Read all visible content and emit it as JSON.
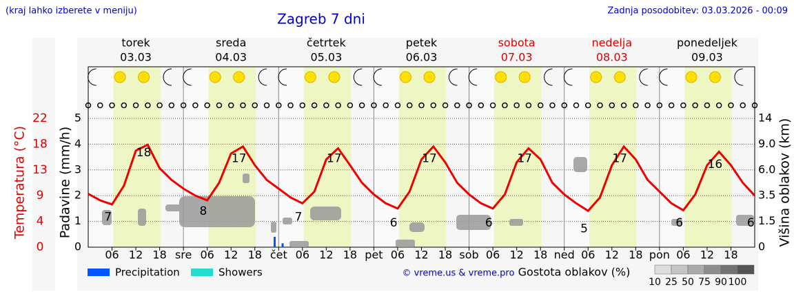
{
  "header": {
    "note": "(kraj lahko izberete v meniju)",
    "title": "Zagreb 7 dni",
    "updated": "Zadnja posodobitev: 03.03.2026 - 00:09",
    "credit": "© vreme.us & vreme.pro"
  },
  "days": [
    {
      "name": "torek",
      "date": "03.03"
    },
    {
      "name": "sreda",
      "date": "04.03"
    },
    {
      "name": "četrtek",
      "date": "05.03"
    },
    {
      "name": "petek",
      "date": "06.03"
    },
    {
      "name": "sobota",
      "date": "07.03"
    },
    {
      "name": "nedelja",
      "date": "08.03"
    },
    {
      "name": "ponedeljek",
      "date": "09.03"
    }
  ],
  "weekend_color": "#e00000",
  "cloud_legend": {
    "title": "Gostota oblakov (%)",
    "labels": [
      "10",
      "25",
      "50",
      "75",
      "90",
      "100"
    ],
    "colors": [
      "#dddddd",
      "#c4c4c4",
      "#aaaaaa",
      "#8e8e8e",
      "#727272",
      "#555555"
    ]
  },
  "chart_data": {
    "type": "line",
    "xlim": [
      0,
      168
    ],
    "xticks": [
      {
        "value": 6,
        "label": "06"
      },
      12,
      18,
      {
        "value": 24,
        "label": "sre"
      },
      {
        "value": 30,
        "label": "06"
      },
      {
        "value": 36,
        "label": "12"
      },
      {
        "value": 42,
        "label": "18"
      },
      {
        "value": 48,
        "label": "čet"
      },
      {
        "value": 54,
        "label": "06"
      },
      {
        "value": 60,
        "label": "12"
      },
      {
        "value": 66,
        "label": "18"
      },
      {
        "value": 72,
        "label": "pet"
      },
      {
        "value": 78,
        "label": "06"
      },
      {
        "value": 84,
        "label": "12"
      },
      {
        "value": 90,
        "label": "18"
      },
      {
        "value": 96,
        "label": "sob"
      },
      {
        "value": 102,
        "label": "06"
      },
      {
        "value": 108,
        "label": "12"
      },
      {
        "value": 114,
        "label": "18"
      },
      {
        "value": 120,
        "label": "ned"
      },
      {
        "value": 126,
        "label": "06"
      },
      {
        "value": 132,
        "label": "12"
      },
      {
        "value": 138,
        "label": "18"
      },
      {
        "value": 144,
        "label": "pon"
      },
      {
        "value": 150,
        "label": "06"
      },
      {
        "value": 156,
        "label": "12"
      },
      {
        "value": 162,
        "label": "18"
      }
    ],
    "ylabel": "Padavine (mm/h)",
    "ylim": [
      0,
      5
    ],
    "yticks": [
      0,
      1,
      2,
      3,
      4,
      5
    ],
    "y2label": "Temperatura (°C)",
    "y2lim": [
      0,
      22
    ],
    "y2ticks": [
      0,
      {
        "value": 4.4,
        "label": "4"
      },
      {
        "value": 8.8,
        "label": "9"
      },
      {
        "value": 13.2,
        "label": "13"
      },
      {
        "value": 17.6,
        "label": "18"
      },
      22
    ],
    "y3label": "Višina oblakov (km)",
    "y3labels": [
      "0",
      "1.5",
      "3.5",
      "6.0",
      "9.0",
      "14"
    ],
    "grid": true,
    "series": [
      {
        "name": "Precipitation",
        "color": "#0055ff",
        "kind": "bar",
        "x": [
          47,
          49
        ],
        "values": [
          0.4,
          0.15
        ]
      },
      {
        "name": "Showers",
        "color": "#22ddcc",
        "kind": "bar",
        "x": [],
        "values": []
      },
      {
        "name": "Temperatura",
        "color": "#ee0000",
        "kind": "line",
        "axis": "y2",
        "x": [
          0,
          3,
          6,
          9,
          12,
          15,
          18,
          21,
          24,
          27,
          30,
          33,
          36,
          39,
          42,
          45,
          48,
          51,
          54,
          57,
          60,
          63,
          66,
          69,
          72,
          75,
          78,
          81,
          84,
          87,
          90,
          93,
          96,
          99,
          102,
          105,
          108,
          111,
          114,
          117,
          120,
          123,
          126,
          129,
          132,
          135,
          138,
          141,
          144,
          147,
          150,
          153,
          156,
          159,
          162,
          165,
          168
        ],
        "values": [
          9.1,
          8.0,
          7.3,
          10.5,
          16.5,
          17.5,
          13.5,
          11.5,
          10.0,
          8.8,
          8.0,
          11.0,
          16.0,
          17.2,
          14.0,
          11.5,
          10.0,
          8.5,
          7.5,
          9.5,
          15.0,
          16.9,
          14.0,
          11.0,
          9.0,
          7.5,
          6.6,
          9.5,
          15.0,
          17.2,
          14.5,
          11.0,
          9.0,
          7.5,
          6.6,
          9.0,
          14.5,
          16.9,
          15.0,
          11.0,
          9.0,
          7.5,
          6.2,
          8.5,
          14.0,
          17.2,
          15.0,
          11.5,
          9.5,
          7.5,
          6.3,
          9.0,
          14.0,
          16.3,
          14.0,
          11.0,
          8.8
        ]
      }
    ],
    "temp_extremes": {
      "x": [
        5,
        14,
        29,
        38,
        53,
        62,
        77,
        86,
        101,
        110,
        125,
        134,
        149,
        158,
        167
      ],
      "values": [
        7,
        18,
        8,
        17,
        7,
        17,
        6,
        17,
        6,
        17,
        5,
        17,
        6,
        16,
        6
      ]
    },
    "daylight": [
      6.3,
      18.2
    ]
  }
}
